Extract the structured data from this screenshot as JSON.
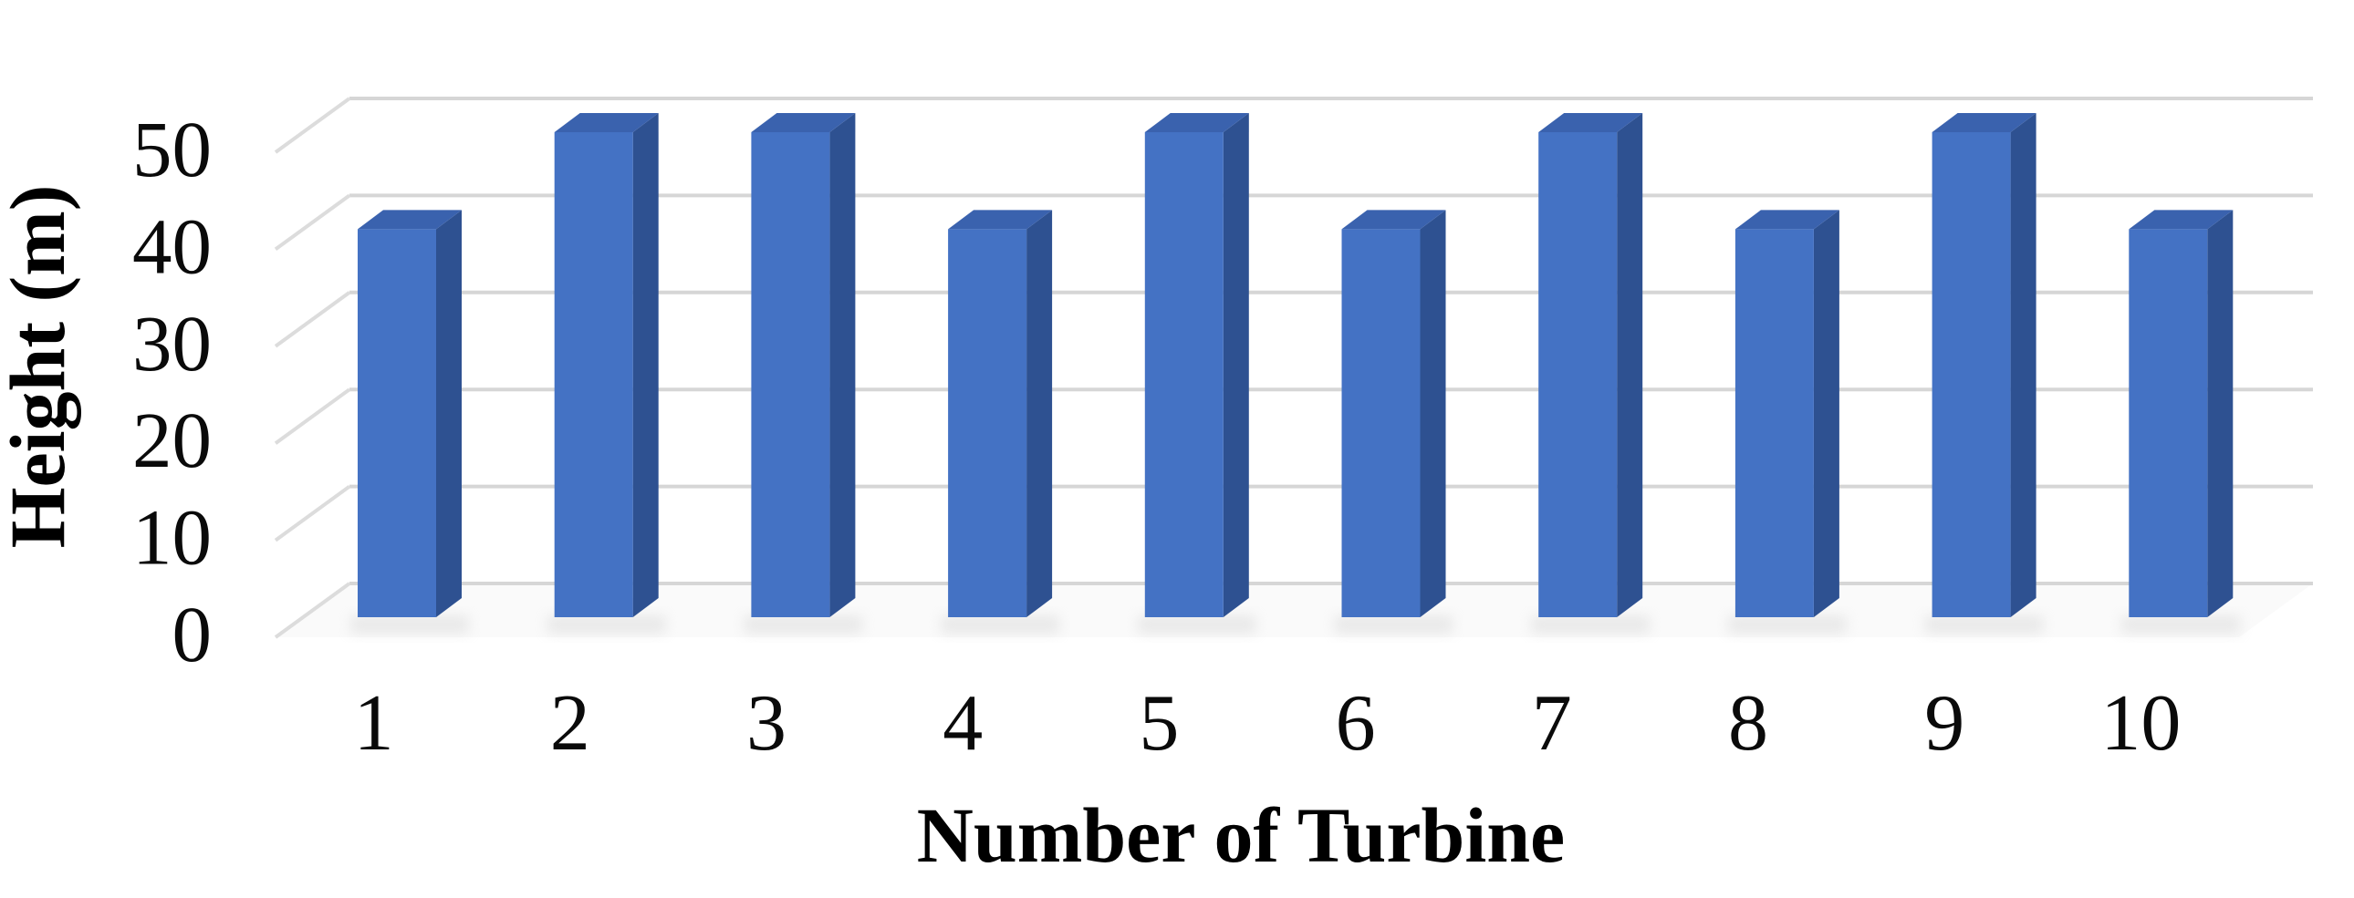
{
  "chart_data": {
    "type": "bar",
    "style": "3d-column",
    "title": "",
    "xlabel": "Number of Turbine",
    "ylabel": "Height (m)",
    "categories": [
      "1",
      "2",
      "3",
      "4",
      "5",
      "6",
      "7",
      "8",
      "9",
      "10"
    ],
    "values": [
      40,
      50,
      50,
      40,
      50,
      40,
      50,
      40,
      50,
      40
    ],
    "yticks": [
      0,
      10,
      20,
      30,
      40,
      50
    ],
    "ylim": [
      0,
      50
    ],
    "grid": true,
    "legend": false,
    "colors": {
      "bar_front": "#4472C4",
      "bar_top": "#3A62AE",
      "bar_side": "#2E5191",
      "gridline": "#D6D6D6",
      "tick_line": "#DCDCDC",
      "floor": "#F5F5F5",
      "shadow": "#C4C4C4",
      "text": "#000000",
      "background": "#FFFFFF"
    }
  }
}
